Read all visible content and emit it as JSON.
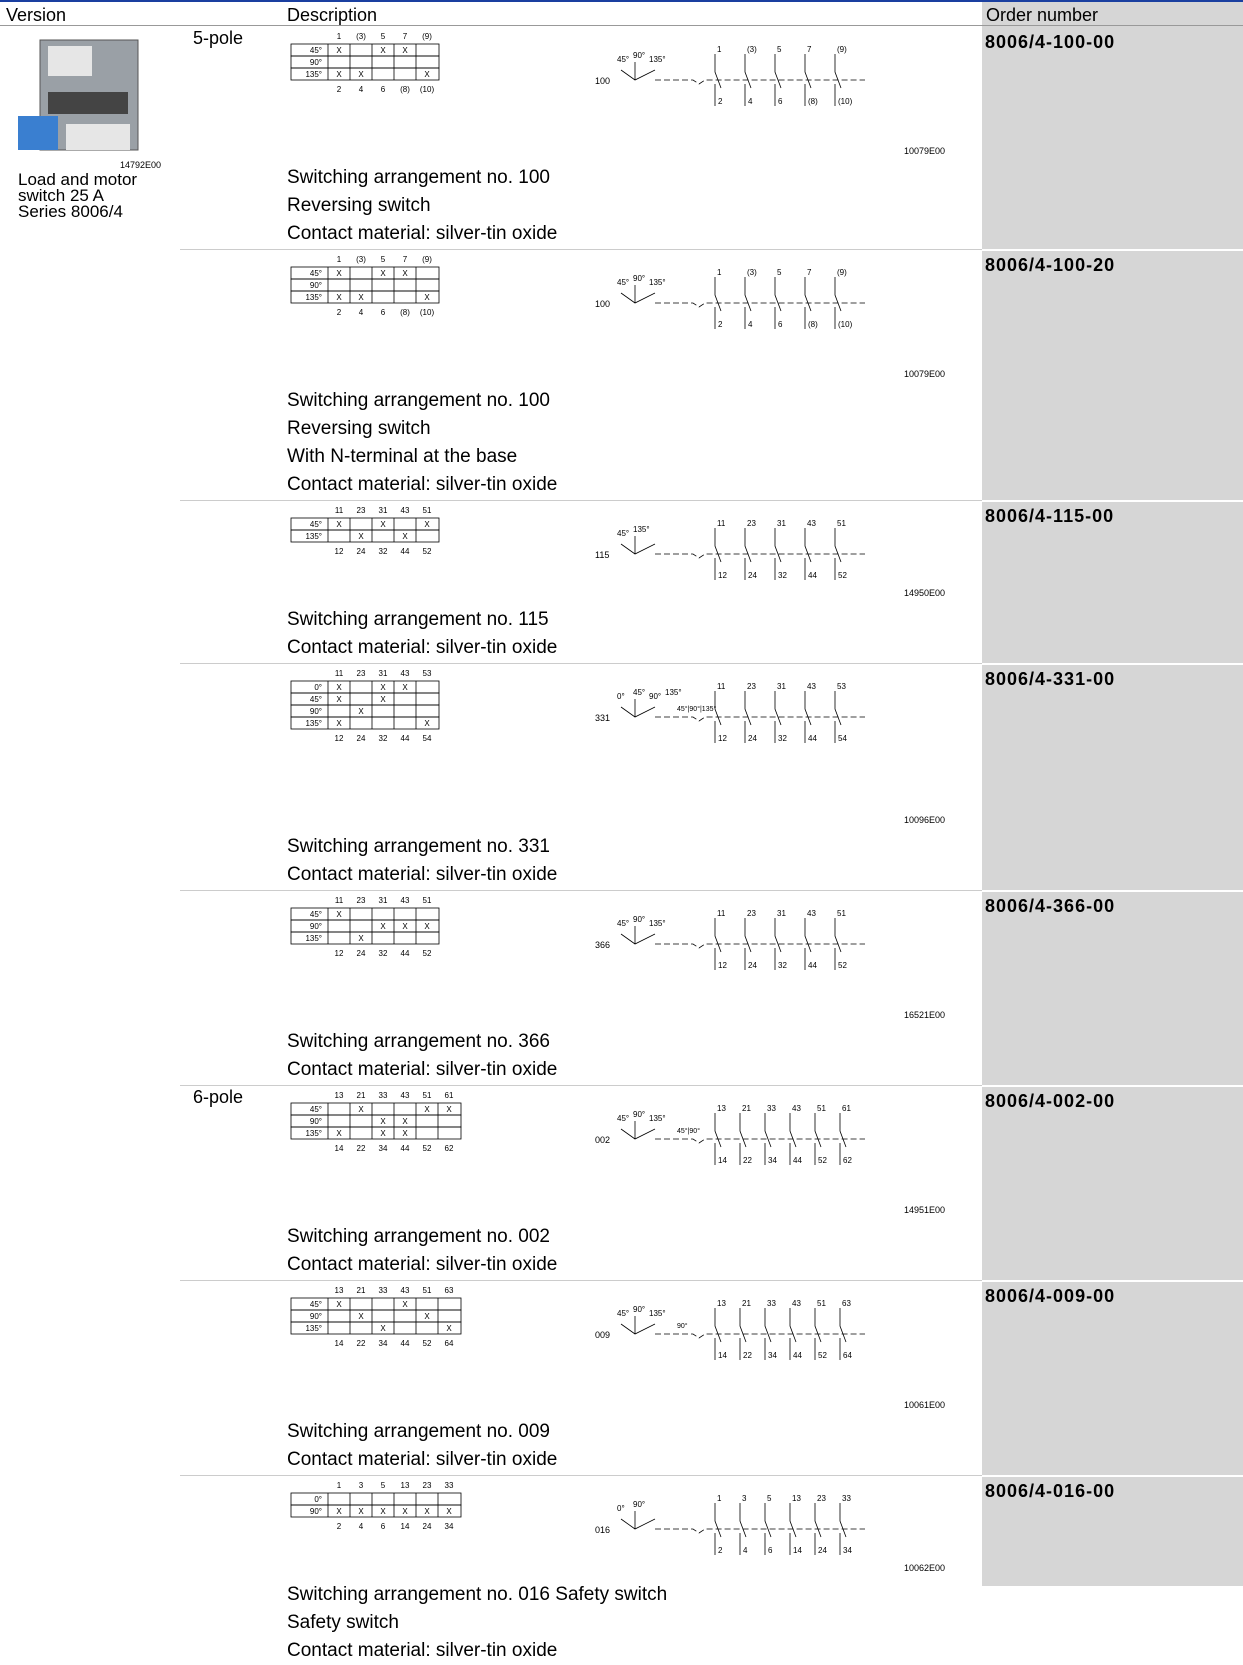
{
  "header": {
    "version": "Version",
    "description": "Description",
    "order": "Order number"
  },
  "version": {
    "image_code": "14792E00",
    "lines": [
      "Load and motor",
      "switch 25 A",
      "Series 8006/4"
    ]
  },
  "rows": [
    {
      "pole": "5-pole",
      "table": {
        "top": [
          "1",
          "(3)",
          "5",
          "7",
          "(9)"
        ],
        "rows": [
          [
            "45°",
            "X",
            null,
            "X",
            "X",
            null
          ],
          [
            "90°",
            null,
            null,
            null,
            null,
            null
          ],
          [
            "135°",
            "X",
            "X",
            null,
            null,
            "X"
          ]
        ],
        "bottom": [
          "2",
          "4",
          "6",
          "(8)",
          "(10)"
        ]
      },
      "schematic": {
        "number": "100",
        "angles": [
          "45°",
          "90°",
          "135°"
        ],
        "top": [
          "1",
          "(3)",
          "5",
          "7",
          "(9)"
        ],
        "bottom": [
          "2",
          "4",
          "6",
          "(8)",
          "(10)"
        ]
      },
      "code": "10079E00",
      "description": [
        "Switching arrangement no. 100",
        "Reversing switch",
        "Contact material: silver-tin oxide"
      ],
      "order": "8006/4-100-00"
    },
    {
      "pole": null,
      "table": {
        "top": [
          "1",
          "(3)",
          "5",
          "7",
          "(9)"
        ],
        "rows": [
          [
            "45°",
            "X",
            null,
            "X",
            "X",
            null
          ],
          [
            "90°",
            null,
            null,
            null,
            null,
            null
          ],
          [
            "135°",
            "X",
            "X",
            null,
            null,
            "X"
          ]
        ],
        "bottom": [
          "2",
          "4",
          "6",
          "(8)",
          "(10)"
        ]
      },
      "schematic": {
        "number": "100",
        "angles": [
          "45°",
          "90°",
          "135°"
        ],
        "top": [
          "1",
          "(3)",
          "5",
          "7",
          "(9)"
        ],
        "bottom": [
          "2",
          "4",
          "6",
          "(8)",
          "(10)"
        ]
      },
      "code": "10079E00",
      "description": [
        "Switching arrangement no. 100",
        "Reversing switch",
        "With N-terminal at the base",
        "Contact material: silver-tin oxide"
      ],
      "order": "8006/4-100-20"
    },
    {
      "pole": null,
      "table": {
        "top": [
          "11",
          "23",
          "31",
          "43",
          "51"
        ],
        "rows": [
          [
            "45°",
            "X",
            null,
            "X",
            null,
            "X"
          ],
          [
            "135°",
            null,
            "X",
            null,
            "X",
            null
          ]
        ],
        "bottom": [
          "12",
          "24",
          "32",
          "44",
          "52"
        ]
      },
      "schematic": {
        "number": "115",
        "angles": [
          "45°",
          "135°"
        ],
        "top": [
          "11",
          "23",
          "31",
          "43",
          "51"
        ],
        "bottom": [
          "12",
          "24",
          "32",
          "44",
          "52"
        ]
      },
      "code": "14950E00",
      "description": [
        "Switching arrangement no. 115",
        "Contact material: silver-tin oxide"
      ],
      "order": "8006/4-115-00"
    },
    {
      "pole": null,
      "table": {
        "top": [
          "11",
          "23",
          "31",
          "43",
          "53"
        ],
        "rows": [
          [
            "0°",
            "X",
            null,
            "X",
            "X",
            null
          ],
          [
            "45°",
            "X",
            null,
            "X",
            null,
            null
          ],
          [
            "90°",
            null,
            "X",
            null,
            null,
            null
          ],
          [
            "135°",
            "X",
            null,
            null,
            null,
            "X"
          ]
        ],
        "bottom": [
          "12",
          "24",
          "32",
          "44",
          "54"
        ]
      },
      "schematic": {
        "number": "331",
        "angles": [
          "0°",
          "45°",
          "90°",
          "135°"
        ],
        "extra": "45°|90°|135°",
        "top": [
          "11",
          "23",
          "31",
          "43",
          "53"
        ],
        "bottom": [
          "12",
          "24",
          "32",
          "44",
          "54"
        ]
      },
      "code": "10096E00",
      "description": [
        "Switching arrangement no. 331",
        "Contact material: silver-tin oxide"
      ],
      "order": "8006/4-331-00"
    },
    {
      "pole": null,
      "table": {
        "top": [
          "11",
          "23",
          "31",
          "43",
          "51"
        ],
        "rows": [
          [
            "45°",
            "X",
            null,
            null,
            null,
            null
          ],
          [
            "90°",
            null,
            null,
            "X",
            "X",
            "X"
          ],
          [
            "135°",
            null,
            "X",
            null,
            null,
            null
          ]
        ],
        "bottom": [
          "12",
          "24",
          "32",
          "44",
          "52"
        ]
      },
      "schematic": {
        "number": "366",
        "angles": [
          "45°",
          "90°",
          "135°"
        ],
        "top": [
          "11",
          "23",
          "31",
          "43",
          "51"
        ],
        "bottom": [
          "12",
          "24",
          "32",
          "44",
          "52"
        ]
      },
      "code": "16521E00",
      "description": [
        "Switching arrangement no. 366",
        "Contact material: silver-tin oxide"
      ],
      "order": "8006/4-366-00"
    },
    {
      "pole": "6-pole",
      "table": {
        "top": [
          "13",
          "21",
          "33",
          "43",
          "51",
          "61"
        ],
        "rows": [
          [
            "45°",
            null,
            "X",
            null,
            null,
            "X",
            "X"
          ],
          [
            "90°",
            null,
            null,
            "X",
            "X",
            null,
            null
          ],
          [
            "135°",
            "X",
            null,
            "X",
            "X",
            null,
            null
          ]
        ],
        "bottom": [
          "14",
          "22",
          "34",
          "44",
          "52",
          "62"
        ]
      },
      "schematic": {
        "number": "002",
        "angles": [
          "45°",
          "90°",
          "135°"
        ],
        "extra": "45°|90°",
        "top": [
          "13",
          "21",
          "33",
          "43",
          "51",
          "61"
        ],
        "bottom": [
          "14",
          "22",
          "34",
          "44",
          "52",
          "62"
        ]
      },
      "code": "14951E00",
      "description": [
        "Switching arrangement no. 002",
        "Contact material: silver-tin oxide"
      ],
      "order": "8006/4-002-00"
    },
    {
      "pole": null,
      "table": {
        "top": [
          "13",
          "21",
          "33",
          "43",
          "51",
          "63"
        ],
        "rows": [
          [
            "45°",
            "X",
            null,
            null,
            "X",
            null,
            null
          ],
          [
            "90°",
            null,
            "X",
            null,
            null,
            "X",
            null
          ],
          [
            "135°",
            null,
            null,
            "X",
            null,
            null,
            "X"
          ]
        ],
        "bottom": [
          "14",
          "22",
          "34",
          "44",
          "52",
          "64"
        ]
      },
      "schematic": {
        "number": "009",
        "angles": [
          "45°",
          "90°",
          "135°"
        ],
        "extra": "90°",
        "top": [
          "13",
          "21",
          "33",
          "43",
          "51",
          "63"
        ],
        "bottom": [
          "14",
          "22",
          "34",
          "44",
          "52",
          "64"
        ]
      },
      "code": "10061E00",
      "description": [
        "Switching arrangement no. 009",
        "Contact material: silver-tin oxide"
      ],
      "order": "8006/4-009-00"
    },
    {
      "pole": null,
      "table": {
        "top": [
          "1",
          "3",
          "5",
          "13",
          "23",
          "33"
        ],
        "rows": [
          [
            "0°",
            null,
            null,
            null,
            null,
            null,
            null
          ],
          [
            "90°",
            "X",
            "X",
            "X",
            "X",
            "X",
            "X"
          ]
        ],
        "bottom": [
          "2",
          "4",
          "6",
          "14",
          "24",
          "34"
        ]
      },
      "schematic": {
        "number": "016",
        "angles": [
          "0°",
          "90°"
        ],
        "top": [
          "1",
          "3",
          "5",
          "13",
          "23",
          "33"
        ],
        "bottom": [
          "2",
          "4",
          "6",
          "14",
          "24",
          "34"
        ]
      },
      "code": "10062E00",
      "description": [
        "Switching arrangement no. 016 Safety switch",
        "Safety switch",
        "Contact material: silver-tin oxide"
      ],
      "order": "8006/4-016-00"
    }
  ]
}
